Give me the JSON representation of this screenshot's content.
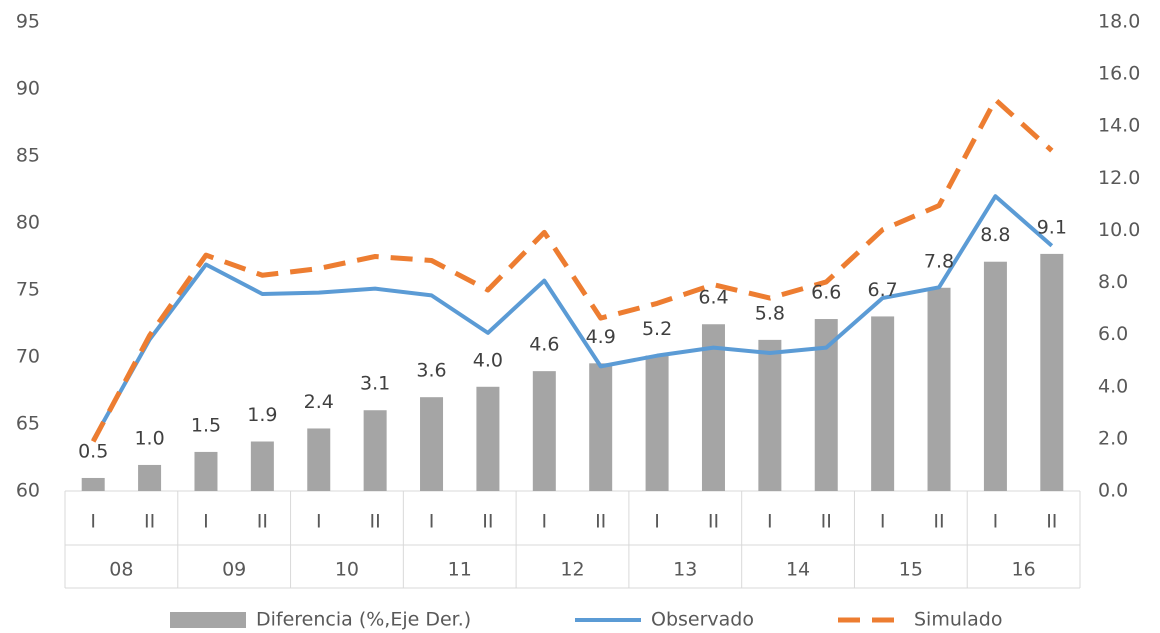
{
  "chart_data": {
    "type": "bar-line",
    "categories": [
      "I",
      "II",
      "I",
      "II",
      "I",
      "II",
      "I",
      "II",
      "I",
      "II",
      "I",
      "II",
      "I",
      "II",
      "I",
      "II",
      "I",
      "II"
    ],
    "groups": [
      "08",
      "09",
      "10",
      "11",
      "12",
      "13",
      "14",
      "15",
      "16"
    ],
    "series": [
      {
        "name": "Diferencia (%,Eje Der.)",
        "type": "bar",
        "axis": "y2",
        "color": "#a5a5a5",
        "values": [
          0.5,
          1.0,
          1.5,
          1.9,
          2.4,
          3.1,
          3.6,
          4.0,
          4.6,
          4.9,
          5.2,
          6.4,
          5.8,
          6.6,
          6.7,
          7.8,
          8.8,
          9.1
        ],
        "value_labels": [
          "0.5",
          "1.0",
          "1.5",
          "1.9",
          "2.4",
          "3.1",
          "3.6",
          "4.0",
          "4.6",
          "4.9",
          "5.2",
          "6.4",
          "5.8",
          "6.6",
          "6.7",
          "7.8",
          "8.8",
          "9.1"
        ]
      },
      {
        "name": "Observado",
        "type": "line",
        "color": "#5b9bd5",
        "dash": false,
        "values": [
          63.8,
          71.3,
          76.9,
          74.7,
          74.8,
          75.1,
          74.6,
          71.8,
          75.7,
          69.3,
          70.1,
          70.7,
          70.3,
          70.7,
          74.4,
          75.2,
          82.0,
          78.3
        ]
      },
      {
        "name": "Simulado",
        "type": "line",
        "color": "#ed7d31",
        "dash": true,
        "values": [
          63.7,
          71.6,
          77.6,
          76.1,
          76.6,
          77.5,
          77.2,
          75.0,
          79.3,
          72.9,
          74.0,
          75.4,
          74.4,
          75.6,
          79.5,
          81.3,
          89.2,
          85.4
        ]
      }
    ],
    "ylim": [
      60,
      95
    ],
    "yticks": [
      60,
      65,
      70,
      75,
      80,
      85,
      90,
      95
    ],
    "y2lim": [
      0,
      18
    ],
    "y2ticks": [
      {
        "value": 0,
        "label": "0.0"
      },
      {
        "value": 2,
        "label": "2.0"
      },
      {
        "value": 4,
        "label": "4.0"
      },
      {
        "value": 6,
        "label": "6.0"
      },
      {
        "value": 8,
        "label": "8.0"
      },
      {
        "value": 10,
        "label": "10.0"
      },
      {
        "value": 12,
        "label": "12.0"
      },
      {
        "value": 14,
        "label": "14.0"
      },
      {
        "value": 16,
        "label": "16.0"
      },
      {
        "value": 18,
        "label": "18.0"
      }
    ],
    "legend": "bottom"
  }
}
